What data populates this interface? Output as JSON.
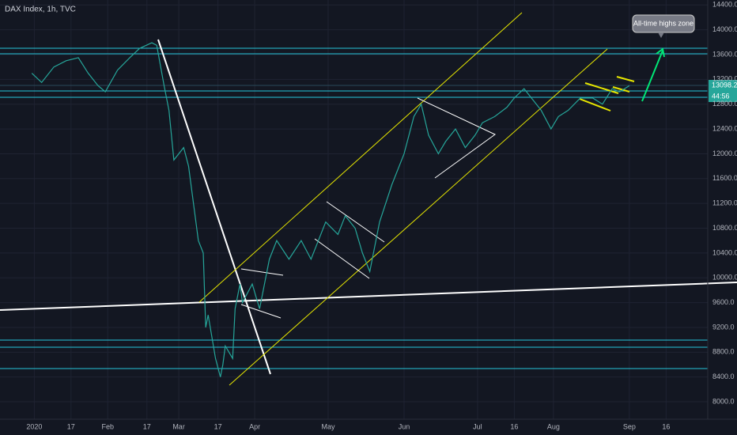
{
  "chart_data": {
    "type": "line",
    "title": "DAX Index, 1h, TVC",
    "annotations": [
      "All-time highs zone"
    ],
    "last_price_label": "13098.2",
    "countdown_label": "44:56",
    "color": "#26a69a",
    "xlim": [
      -12,
      277
    ],
    "ylim": [
      7720,
      14480
    ],
    "xticks": [
      {
        "value": 2,
        "label": "2020"
      },
      {
        "value": 17,
        "label": "17"
      },
      {
        "value": 32,
        "label": "Feb"
      },
      {
        "value": 48,
        "label": "17"
      },
      {
        "value": 61,
        "label": "Mar"
      },
      {
        "value": 77,
        "label": "17"
      },
      {
        "value": 92,
        "label": "Apr"
      },
      {
        "value": 122,
        "label": "May"
      },
      {
        "value": 153,
        "label": "Jun"
      },
      {
        "value": 183,
        "label": "Jul"
      },
      {
        "value": 198,
        "label": "16"
      },
      {
        "value": 214,
        "label": "Aug"
      },
      {
        "value": 245,
        "label": "Sep"
      },
      {
        "value": 260,
        "label": "16"
      }
    ],
    "yticks": [
      {
        "value": 8000,
        "label": "8000.0"
      },
      {
        "value": 8400,
        "label": "8400.0"
      },
      {
        "value": 8800,
        "label": "8800.0"
      },
      {
        "value": 9200,
        "label": "9200.0"
      },
      {
        "value": 9600,
        "label": "9600.0"
      },
      {
        "value": 10000,
        "label": "10000.0"
      },
      {
        "value": 10400,
        "label": "10400.0"
      },
      {
        "value": 10800,
        "label": "10800.0"
      },
      {
        "value": 11200,
        "label": "11200.0"
      },
      {
        "value": 11600,
        "label": "11600.0"
      },
      {
        "value": 12000,
        "label": "12000.0"
      },
      {
        "value": 12400,
        "label": "12400.0"
      },
      {
        "value": 12800,
        "label": "12800.0"
      },
      {
        "value": 13200,
        "label": "13200.0"
      },
      {
        "value": 13600,
        "label": "13600.0"
      },
      {
        "value": 14000,
        "label": "14000.0"
      },
      {
        "value": 14400,
        "label": "14400.0"
      }
    ],
    "grid": true,
    "x": [
      1,
      5,
      10,
      15,
      20,
      24,
      28,
      31,
      36,
      41,
      45,
      50,
      52,
      55,
      57,
      59,
      63,
      65,
      69,
      71,
      72,
      73,
      76,
      78,
      79,
      80,
      83,
      84,
      86,
      87,
      91,
      94,
      98,
      101,
      106,
      111,
      115,
      121,
      126,
      129,
      133,
      136,
      139,
      143,
      148,
      153,
      157,
      160,
      163,
      167,
      170,
      174,
      178,
      182,
      185,
      190,
      195,
      198,
      202,
      205,
      209,
      213,
      216,
      220,
      225,
      230,
      234,
      238,
      241,
      245
    ],
    "values": [
      13300,
      13150,
      13400,
      13500,
      13550,
      13300,
      13100,
      13000,
      13350,
      13550,
      13700,
      13790,
      13750,
      13100,
      12700,
      11900,
      12100,
      11800,
      10600,
      10400,
      9200,
      9400,
      8700,
      8400,
      8600,
      8900,
      8700,
      9500,
      9900,
      9600,
      9900,
      9500,
      10300,
      10600,
      10300,
      10600,
      10300,
      10900,
      10700,
      11000,
      10800,
      10400,
      10100,
      10900,
      11500,
      12000,
      12600,
      12800,
      12300,
      12000,
      12200,
      12400,
      12100,
      12300,
      12500,
      12600,
      12750,
      12900,
      13050,
      12900,
      12700,
      12400,
      12600,
      12700,
      12900,
      12900,
      12800,
      13050,
      13000,
      13098.2
    ]
  }
}
